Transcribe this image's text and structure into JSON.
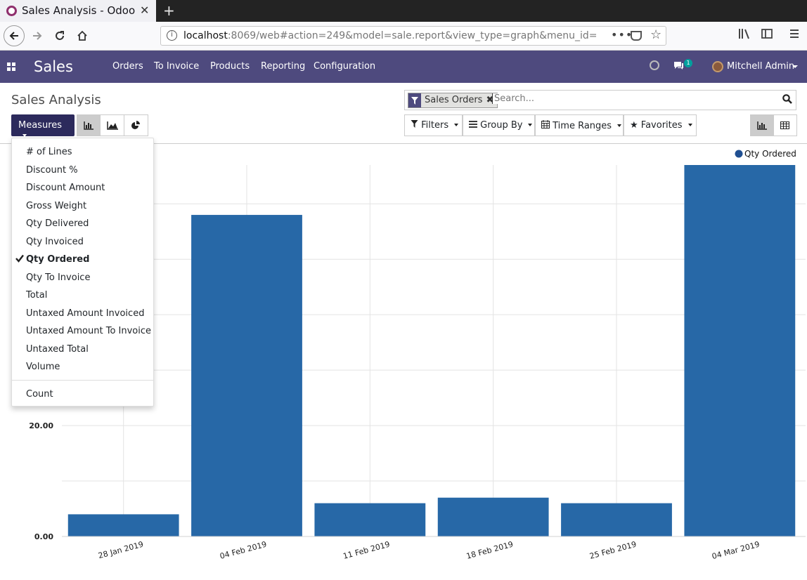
{
  "browser": {
    "tab_title": "Sales Analysis - Odoo",
    "new_tab_label": "+",
    "url_host": "localhost",
    "url_rest": ":8069/web#action=249&model=sale.report&view_type=graph&menu_id=",
    "url_more": "•••"
  },
  "odoo": {
    "app_name": "Sales",
    "menu": [
      "Orders",
      "To Invoice",
      "Products",
      "Reporting",
      "Configuration"
    ],
    "chat_badge": "1",
    "user_name": "Mitchell Admin"
  },
  "control_panel": {
    "title": "Sales Analysis",
    "measures_label": "Measures",
    "facet_label": "Sales Orders",
    "search_placeholder": "Search...",
    "filters_label": "Filters",
    "group_by_label": "Group By",
    "time_ranges_label": "Time Ranges",
    "favorites_label": "Favorites"
  },
  "measures_menu": {
    "items": [
      "# of Lines",
      "Discount %",
      "Discount Amount",
      "Gross Weight",
      "Qty Delivered",
      "Qty Invoiced",
      "Qty Ordered",
      "Qty To Invoice",
      "Total",
      "Untaxed Amount Invoiced",
      "Untaxed Amount To Invoice",
      "Untaxed Total",
      "Volume"
    ],
    "selected": "Qty Ordered",
    "count_label": "Count"
  },
  "colors": {
    "navbar": "#4e4a7e",
    "primary_button": "#2c2a5c",
    "bar": "#2768a7"
  },
  "chart_data": {
    "type": "bar",
    "categories": [
      "28 Jan 2019",
      "04 Feb 2019",
      "11 Feb 2019",
      "18 Feb 2019",
      "25 Feb 2019",
      "04 Mar 2019"
    ],
    "series": [
      {
        "name": "Qty Ordered",
        "values": [
          4,
          58,
          6,
          7,
          6,
          67
        ]
      }
    ],
    "y_tick_labels": [
      "0.00",
      "20.00"
    ],
    "y_tick_values": [
      0,
      20
    ],
    "ylim": [
      0,
      67
    ],
    "grid": true,
    "legend": "top-right"
  }
}
